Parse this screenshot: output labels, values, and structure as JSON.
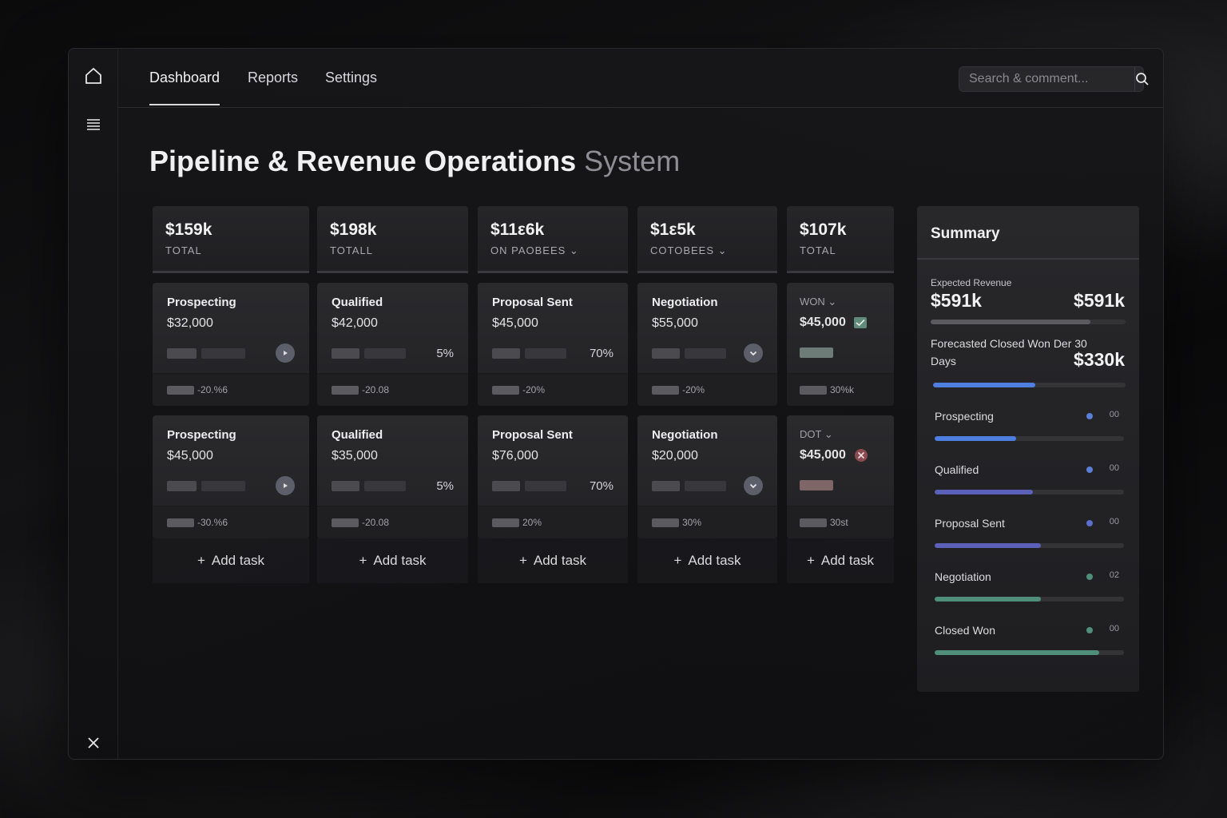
{
  "colors": {
    "accent_blue": "#4e7ee0",
    "indigo": "#5b61b8",
    "green": "#4f8f7a",
    "red": "#c25a5a"
  },
  "nav": {
    "tabs": [
      {
        "label": "Dashboard",
        "active": true
      },
      {
        "label": "Reports",
        "active": false
      },
      {
        "label": "Settings",
        "active": false
      }
    ],
    "search_placeholder": "Search & comment..."
  },
  "rail": {
    "icons": [
      "home-icon",
      "menu-icon",
      "close-icon"
    ]
  },
  "title": {
    "main": "Pipeline & Revenue Operations",
    "muted": "System"
  },
  "columns": [
    {
      "header": {
        "amount": "$159k",
        "label": "TOTAL"
      },
      "cards": [
        {
          "stage": "Prospecting",
          "value": "$32,000",
          "foot": "-20.%6",
          "action": "play-icon"
        },
        {
          "stage": "Prospecting",
          "value": "$45,000",
          "foot": "-30.%6",
          "action": "play-icon"
        }
      ],
      "add_label": "Add task"
    },
    {
      "header": {
        "amount": "$198k",
        "label": "TOTALL"
      },
      "cards": [
        {
          "stage": "Qualified",
          "value": "$42,000",
          "pct": "5%",
          "foot": "-20.08"
        },
        {
          "stage": "Qualified",
          "value": "$35,000",
          "pct": "5%",
          "foot": "-20.08"
        }
      ],
      "add_label": "Add task"
    },
    {
      "header": {
        "amount": "$11ε6k",
        "label": "ON PAOBEES ⌄"
      },
      "cards": [
        {
          "stage": "Proposal Sent",
          "value": "$45,000",
          "pct": "70%",
          "foot": "-20%"
        },
        {
          "stage": "Proposal Sent",
          "value": "$76,000",
          "pct": "70%",
          "foot": "20%"
        }
      ],
      "add_label": "Add task"
    },
    {
      "header": {
        "amount": "$1ε5k",
        "label": "COTOBEES ⌄"
      },
      "cards": [
        {
          "stage": "Negotiation",
          "value": "$55,000",
          "foot": "-20%",
          "action": "chevron-down-icon"
        },
        {
          "stage": "Negotiation",
          "value": "$20,000",
          "foot": "30%",
          "action": "chevron-down-icon"
        }
      ],
      "add_label": "Add task"
    },
    {
      "header": {
        "amount": "$107k",
        "label": "TOTAL"
      },
      "cards": [
        {
          "stage": "WON ⌄",
          "value": "$45,000",
          "foot": "30%k",
          "badge": "check-icon"
        },
        {
          "stage": "DOT ⌄",
          "value": "$45,000",
          "foot": "30st",
          "badge": "x-icon"
        }
      ],
      "add_label": "Add task"
    }
  ],
  "summary": {
    "title": "Summary",
    "expected_label": "Expected Revenue",
    "expected_value": "$591k",
    "expected_value_right": "$591k",
    "expected_progress": 0.82,
    "forecast_label": "Forecasted Closed Won Der 30 Days",
    "forecast_value": "$330k",
    "forecast_progress": 0.53,
    "stages": [
      {
        "name": "Prospecting",
        "count": "00",
        "progress": 0.43,
        "color": "#4e7ee0",
        "dot": "#5b7fd6"
      },
      {
        "name": "Qualified",
        "count": "00",
        "progress": 0.52,
        "color": "#5b61b8",
        "dot": "#5b7fd6"
      },
      {
        "name": "Proposal Sent",
        "count": "00",
        "progress": 0.56,
        "color": "#5b61b8",
        "dot": "#5b6fc8"
      },
      {
        "name": "Negotiation",
        "count": "02",
        "progress": 0.56,
        "color": "#4f8f7a",
        "dot": "#4f8f7a"
      },
      {
        "name": "Closed Won",
        "count": "00",
        "progress": 0.87,
        "color": "#4f8f7a",
        "dot": "#4f8f7a"
      }
    ]
  }
}
